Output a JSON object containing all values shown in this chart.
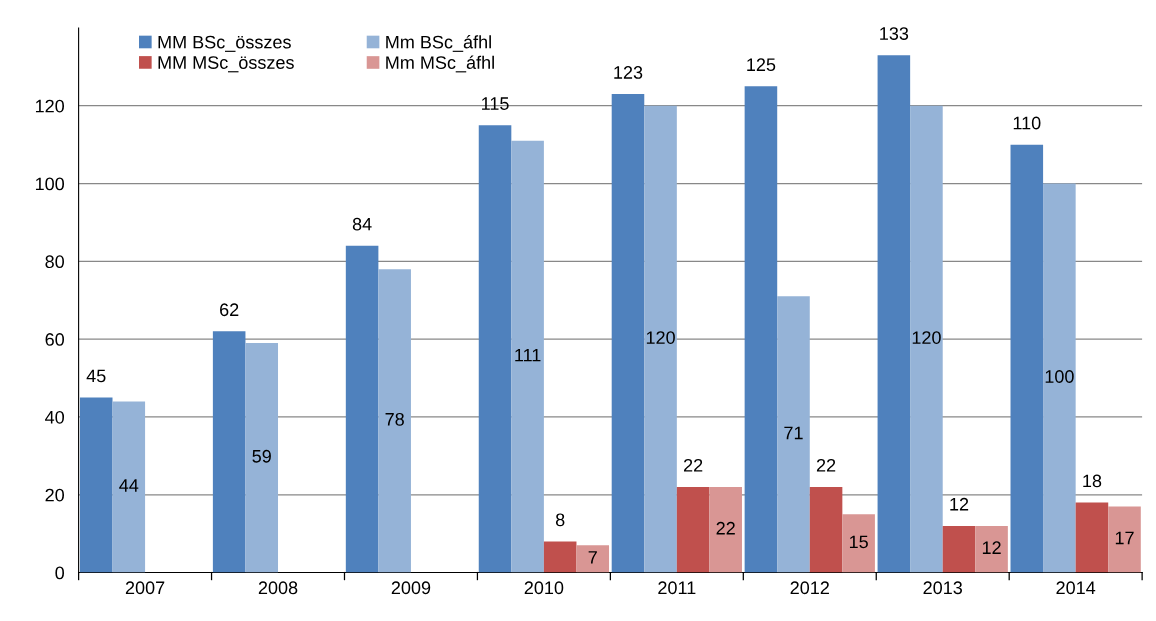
{
  "chart_data": {
    "type": "bar",
    "categories": [
      "2007",
      "2008",
      "2009",
      "2010",
      "2011",
      "2012",
      "2013",
      "2014"
    ],
    "series": [
      {
        "name": "MM BSc_összes",
        "color": "#4f81bd",
        "values": [
          45,
          62,
          84,
          115,
          123,
          125,
          133,
          110
        ]
      },
      {
        "name": "Mm BSc_áfhl",
        "color": "#95b3d7",
        "values": [
          44,
          59,
          78,
          111,
          120,
          71,
          120,
          100
        ]
      },
      {
        "name": "MM MSc_összes",
        "color": "#c0504d",
        "values": [
          null,
          null,
          null,
          8,
          22,
          22,
          12,
          18
        ]
      },
      {
        "name": "Mm MSc_áfhl",
        "color": "#d99694",
        "values": [
          null,
          null,
          null,
          7,
          22,
          15,
          12,
          17
        ]
      }
    ],
    "ylim": [
      0,
      140
    ],
    "yticks": [
      0,
      20,
      40,
      60,
      80,
      100,
      120
    ],
    "grid": "y",
    "legend": "top left",
    "data_labels": true
  }
}
